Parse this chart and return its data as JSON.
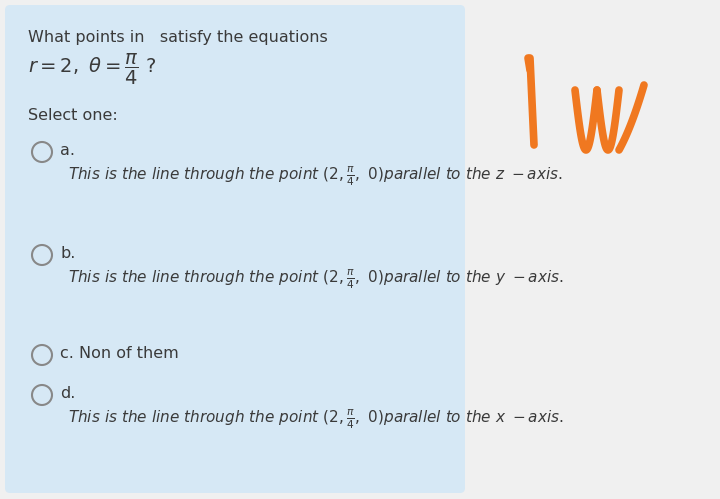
{
  "bg_color": "#f0f0f0",
  "box_bg_color": "#d6e8f5",
  "text_color": "#3a3a3a",
  "annotation_color": "#f07820",
  "title1": "What points in   satisfy the equations",
  "title2_math": "$r = 2,\\ \\theta = \\dfrac{\\pi}{4}\\ ?$",
  "select_one": "Select one:",
  "opt_a_label": "a.",
  "opt_b_label": "b.",
  "opt_c_label": "c. Non of them",
  "opt_d_label": "d.",
  "opt_a_text": "$\\mathit{This\\ is\\ the\\ line\\ through\\ the\\ point\\ (2,\\tfrac{\\pi}{4},\\ 0)parallel\\ to\\ the\\ z\\ -axis.}$",
  "opt_b_text": "$\\mathit{This\\ is\\ the\\ line\\ through\\ the\\ point\\ (2,\\tfrac{\\pi}{4},\\ 0)parallel\\ to\\ the\\ y\\ -axis.}$",
  "opt_d_text": "$\\mathit{This\\ is\\ the\\ line\\ through\\ the\\ point\\ (2,\\tfrac{\\pi}{4},\\ 0)parallel\\ to\\ the\\ x\\ -axis.}$"
}
